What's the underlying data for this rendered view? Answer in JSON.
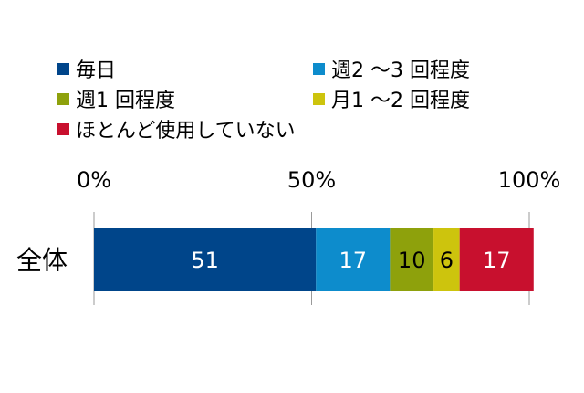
{
  "chart_data": {
    "type": "bar",
    "orientation": "horizontal",
    "stacked": true,
    "categories": [
      "全体"
    ],
    "series": [
      {
        "name": "毎日",
        "values": [
          51
        ],
        "color": "#00458a"
      },
      {
        "name": "週2 ～3 回程度",
        "values": [
          17
        ],
        "color": "#0d8ccc"
      },
      {
        "name": "週1 回程度",
        "values": [
          10
        ],
        "color": "#8ea10c"
      },
      {
        "name": "月1 ～2 回程度",
        "values": [
          6
        ],
        "color": "#cdc40d"
      },
      {
        "name": "ほとんど使用していない",
        "values": [
          17
        ],
        "color": "#c8102e"
      }
    ],
    "x_ticks": [
      "0%",
      "50%",
      "100%"
    ],
    "xlim": [
      0,
      100
    ],
    "legend_position": "top",
    "grid": true,
    "title": "",
    "xlabel": "",
    "ylabel": ""
  }
}
